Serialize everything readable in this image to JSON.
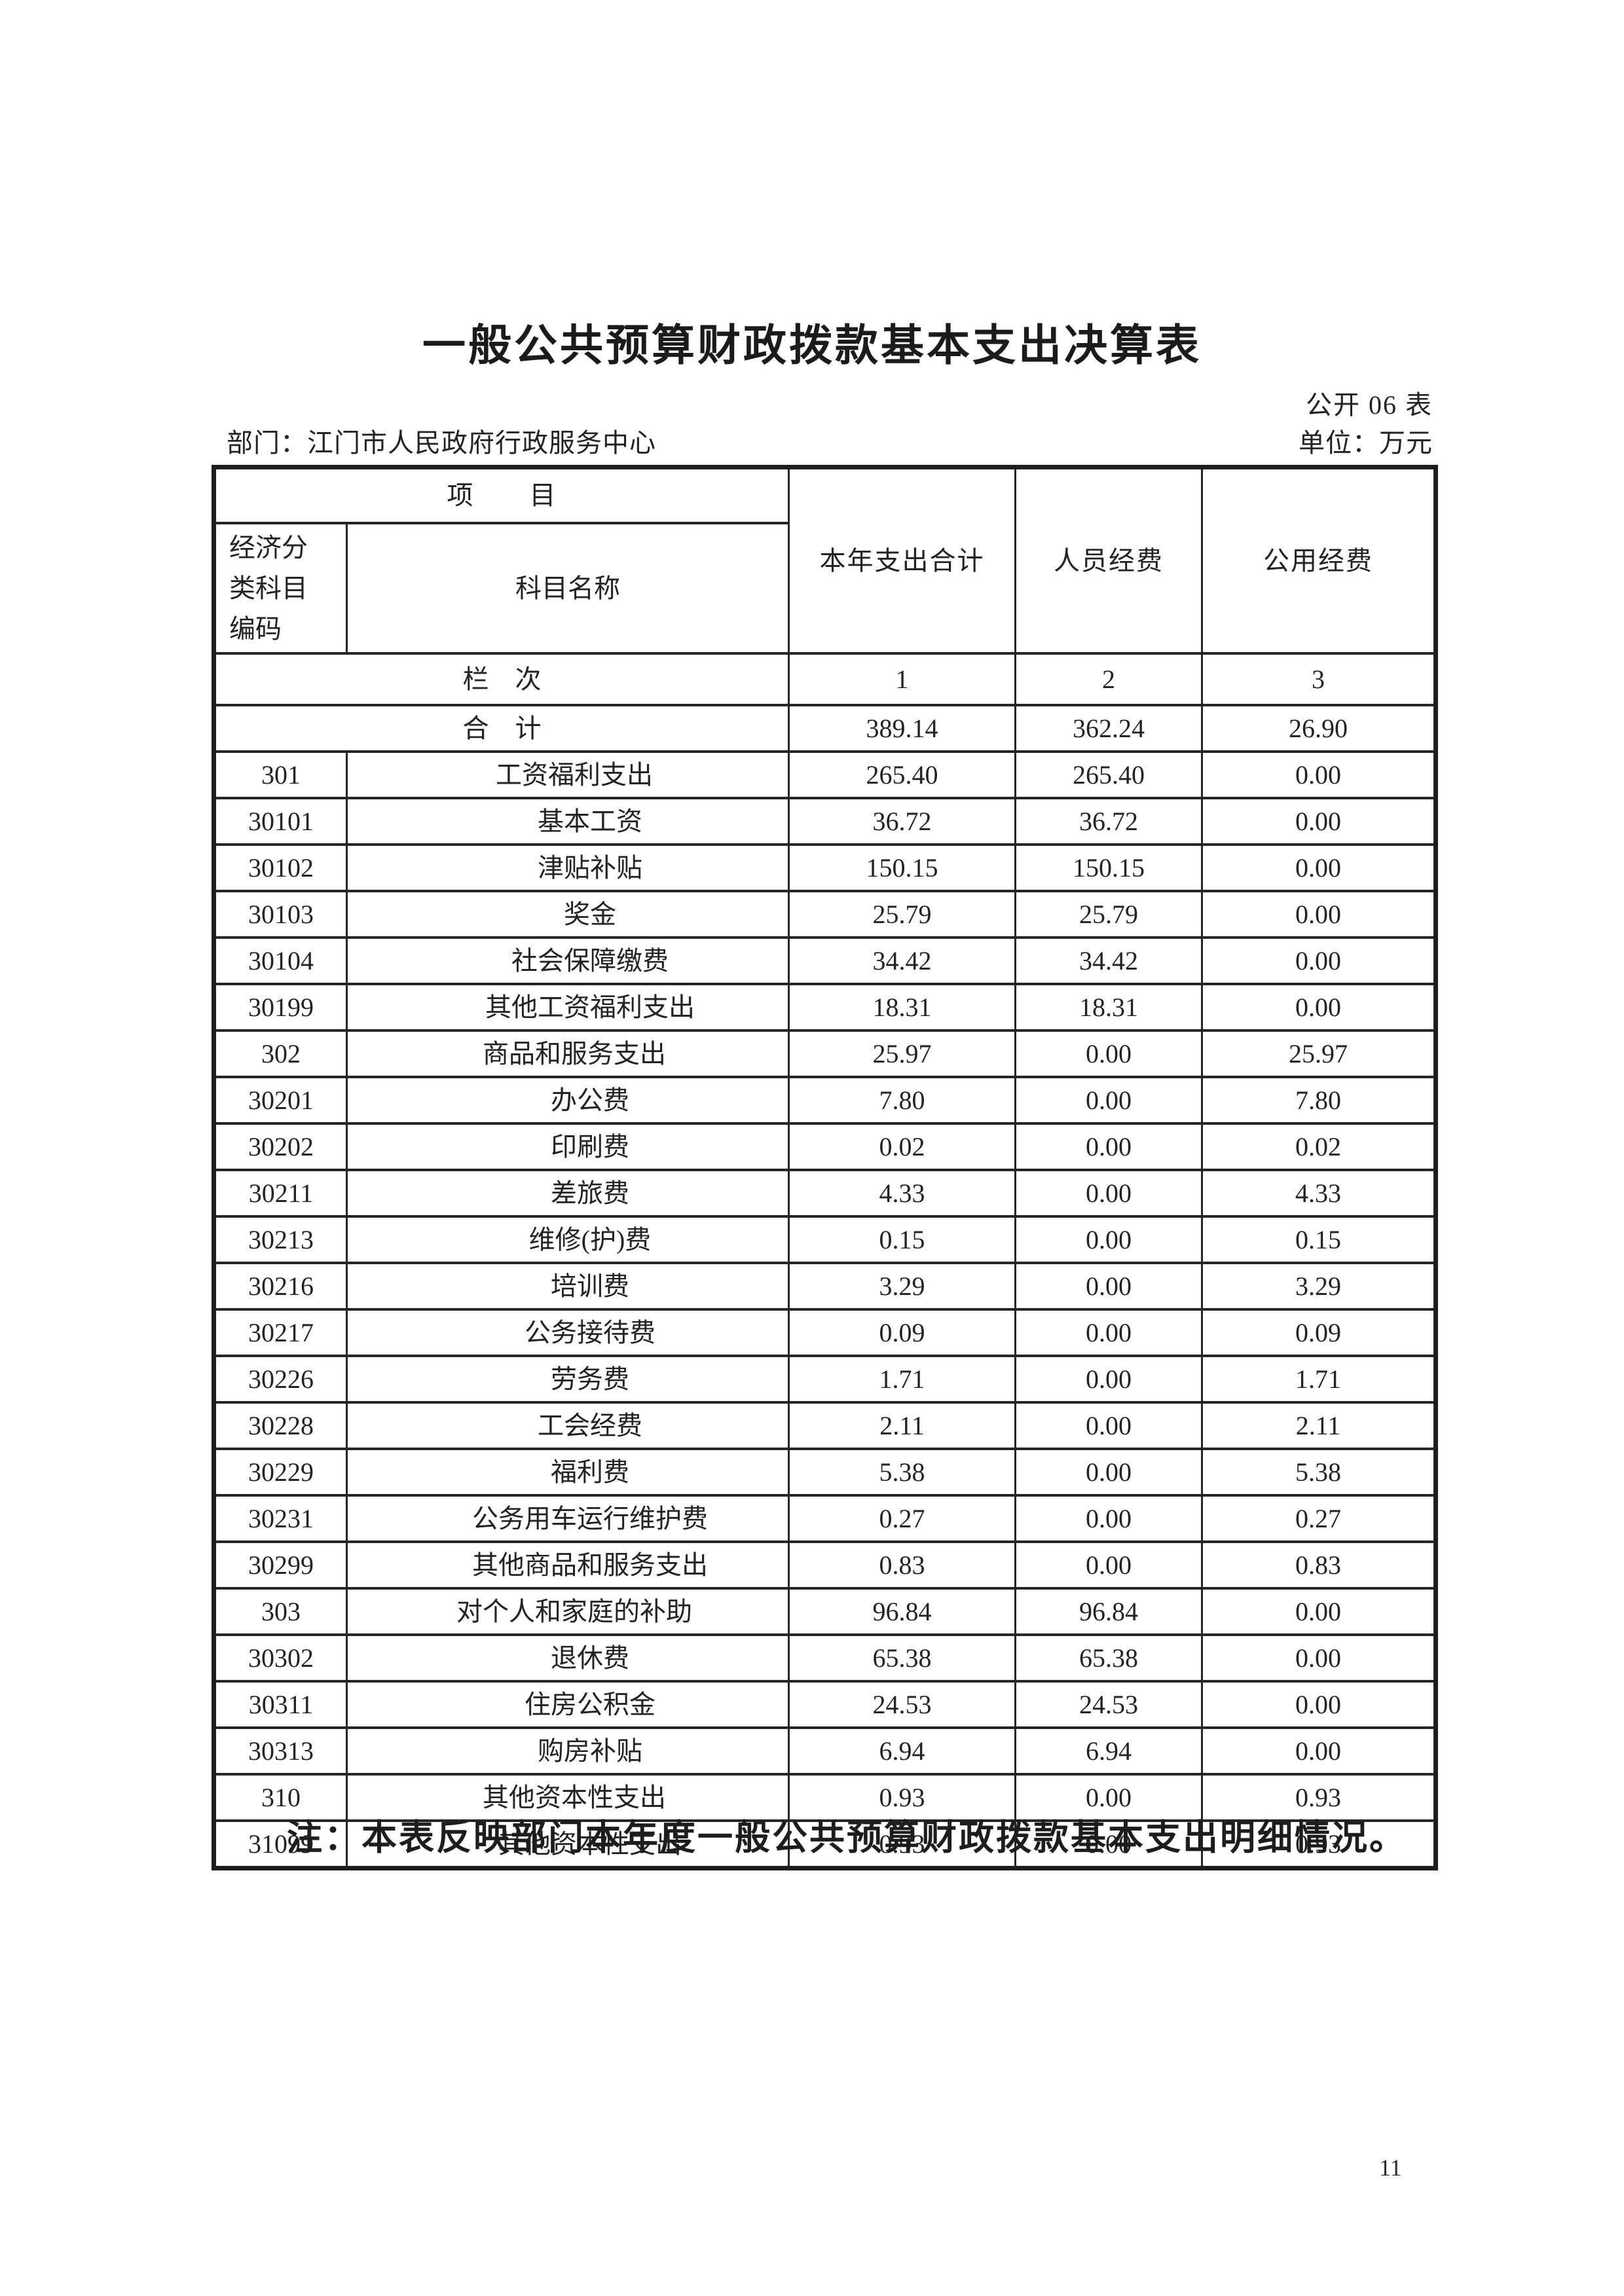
{
  "page": {
    "title": "一般公共预算财政拨款基本支出决算表",
    "table_code": "公开 06 表",
    "department": "部门：江门市人民政府行政服务中心",
    "unit": "单位：万元",
    "note": "注：本表反映部门本年度一般公共预算财政拨款基本支出明细情况。",
    "page_number": "11"
  },
  "table": {
    "header": {
      "project_label": "项　　目",
      "code_label": "经济分\n类科目\n编码",
      "subject_label": "科目名称",
      "col_total": "本年支出合计",
      "col_personnel": "人员经费",
      "col_public": "公用经费",
      "rank_label": "栏　次",
      "rank_numbers": [
        "1",
        "2",
        "3"
      ]
    },
    "total_row": {
      "label": "合　计",
      "total": "389.14",
      "personnel": "362.24",
      "public": "26.90"
    },
    "rows": [
      {
        "code": "301",
        "name": "工资福利支出",
        "level": 1,
        "total": "265.40",
        "personnel": "265.40",
        "public": "0.00"
      },
      {
        "code": "30101",
        "name": "基本工资",
        "level": 2,
        "total": "36.72",
        "personnel": "36.72",
        "public": "0.00"
      },
      {
        "code": "30102",
        "name": "津贴补贴",
        "level": 2,
        "total": "150.15",
        "personnel": "150.15",
        "public": "0.00"
      },
      {
        "code": "30103",
        "name": "奖金",
        "level": 2,
        "total": "25.79",
        "personnel": "25.79",
        "public": "0.00"
      },
      {
        "code": "30104",
        "name": "社会保障缴费",
        "level": 2,
        "total": "34.42",
        "personnel": "34.42",
        "public": "0.00"
      },
      {
        "code": "30199",
        "name": "其他工资福利支出",
        "level": 2,
        "total": "18.31",
        "personnel": "18.31",
        "public": "0.00"
      },
      {
        "code": "302",
        "name": "商品和服务支出",
        "level": 1,
        "total": "25.97",
        "personnel": "0.00",
        "public": "25.97"
      },
      {
        "code": "30201",
        "name": "办公费",
        "level": 2,
        "total": "7.80",
        "personnel": "0.00",
        "public": "7.80"
      },
      {
        "code": "30202",
        "name": "印刷费",
        "level": 2,
        "total": "0.02",
        "personnel": "0.00",
        "public": "0.02"
      },
      {
        "code": "30211",
        "name": "差旅费",
        "level": 2,
        "total": "4.33",
        "personnel": "0.00",
        "public": "4.33"
      },
      {
        "code": "30213",
        "name": "维修(护)费",
        "level": 2,
        "total": "0.15",
        "personnel": "0.00",
        "public": "0.15"
      },
      {
        "code": "30216",
        "name": "培训费",
        "level": 2,
        "total": "3.29",
        "personnel": "0.00",
        "public": "3.29"
      },
      {
        "code": "30217",
        "name": "公务接待费",
        "level": 2,
        "total": "0.09",
        "personnel": "0.00",
        "public": "0.09"
      },
      {
        "code": "30226",
        "name": "劳务费",
        "level": 2,
        "total": "1.71",
        "personnel": "0.00",
        "public": "1.71"
      },
      {
        "code": "30228",
        "name": "工会经费",
        "level": 2,
        "total": "2.11",
        "personnel": "0.00",
        "public": "2.11"
      },
      {
        "code": "30229",
        "name": "福利费",
        "level": 2,
        "total": "5.38",
        "personnel": "0.00",
        "public": "5.38"
      },
      {
        "code": "30231",
        "name": "公务用车运行维护费",
        "level": 2,
        "total": "0.27",
        "personnel": "0.00",
        "public": "0.27"
      },
      {
        "code": "30299",
        "name": "其他商品和服务支出",
        "level": 2,
        "total": "0.83",
        "personnel": "0.00",
        "public": "0.83"
      },
      {
        "code": "303",
        "name": "对个人和家庭的补助",
        "level": 1,
        "total": "96.84",
        "personnel": "96.84",
        "public": "0.00"
      },
      {
        "code": "30302",
        "name": "退休费",
        "level": 2,
        "total": "65.38",
        "personnel": "65.38",
        "public": "0.00"
      },
      {
        "code": "30311",
        "name": "住房公积金",
        "level": 2,
        "total": "24.53",
        "personnel": "24.53",
        "public": "0.00"
      },
      {
        "code": "30313",
        "name": "购房补贴",
        "level": 2,
        "total": "6.94",
        "personnel": "6.94",
        "public": "0.00"
      },
      {
        "code": "310",
        "name": "其他资本性支出",
        "level": 1,
        "total": "0.93",
        "personnel": "0.00",
        "public": "0.93"
      },
      {
        "code": "31099",
        "name": "其他资本性支出",
        "level": 2,
        "total": "0.93",
        "personnel": "0.00",
        "public": "0.93"
      }
    ]
  }
}
